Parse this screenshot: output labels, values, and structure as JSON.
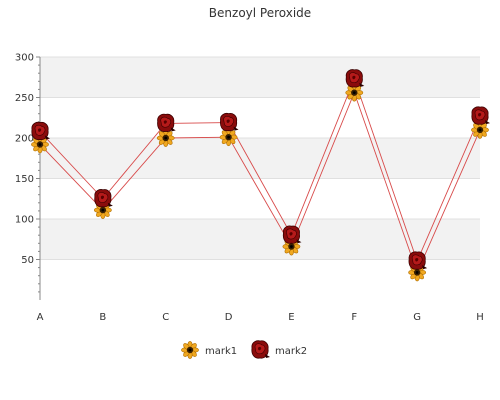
{
  "chart_data": {
    "type": "line",
    "title": "Benzoyl Peroxide",
    "xlabel": "",
    "ylabel": "",
    "categories": [
      "A",
      "B",
      "C",
      "D",
      "E",
      "F",
      "G",
      "H"
    ],
    "ylim": [
      0,
      300
    ],
    "yticks": [
      50,
      100,
      150,
      200,
      250,
      300
    ],
    "grid": true,
    "legend_position": "bottom",
    "series": [
      {
        "name": "mark1",
        "values": [
          192,
          111,
          200,
          201,
          66,
          256,
          34,
          210
        ],
        "color": "#d84a4a",
        "marker": "sunflower-icon"
      },
      {
        "name": "mark2",
        "values": [
          208,
          125,
          218,
          219,
          80,
          273,
          48,
          227
        ],
        "color": "#d84a4a",
        "marker": "rose-icon"
      }
    ],
    "band_colors": [
      "#ffffff",
      "#f2f2f2"
    ]
  }
}
